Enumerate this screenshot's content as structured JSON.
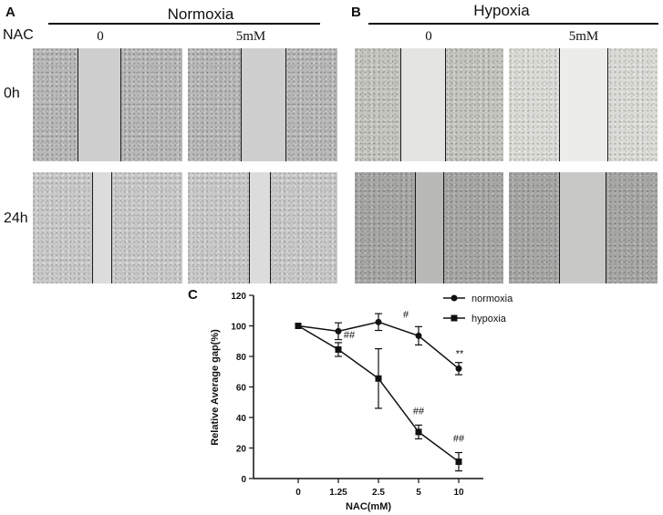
{
  "panel_a": {
    "letter": "A",
    "title": "Normoxia",
    "treatment_label": "NAC",
    "columns": [
      "0",
      "5mM"
    ],
    "rows": [
      "0h",
      "24h"
    ]
  },
  "panel_b": {
    "letter": "B",
    "title": "Hypoxia",
    "columns": [
      "0",
      "5mM"
    ]
  },
  "panel_c": {
    "letter": "C"
  },
  "chart_data": {
    "type": "line",
    "title": "",
    "xlabel": "NAC(mM)",
    "ylabel": "Relative Average gap(%)",
    "categories": [
      "0",
      "1.25",
      "2.5",
      "5",
      "10"
    ],
    "ylim": [
      0,
      120
    ],
    "yticks": [
      0,
      20,
      40,
      60,
      80,
      100,
      120
    ],
    "grid": false,
    "legend_position": "top-right",
    "series": [
      {
        "name": "normoxia",
        "marker": "circle",
        "values": [
          100,
          96.5,
          102.5,
          93.5,
          72
        ],
        "errors": [
          0,
          5.5,
          5.5,
          6,
          4
        ],
        "annotations": [
          "",
          "",
          "",
          "",
          "**"
        ]
      },
      {
        "name": "hypoxia",
        "marker": "square",
        "values": [
          100,
          84.5,
          65.5,
          30.5,
          11
        ],
        "errors": [
          0,
          4.5,
          19.5,
          4.5,
          6
        ],
        "annotations": [
          "",
          "##",
          "#",
          "##",
          "##"
        ]
      }
    ]
  }
}
